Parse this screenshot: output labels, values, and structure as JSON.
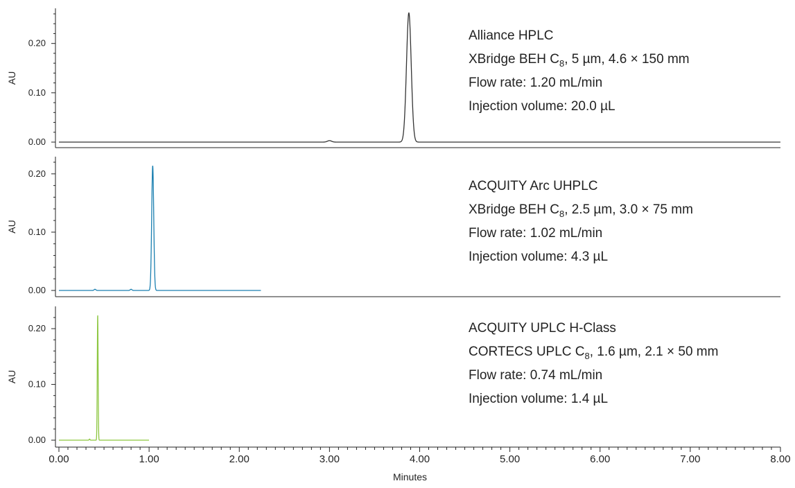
{
  "chart_data": {
    "type": "line",
    "x_label": "Minutes",
    "x_ticks": [
      "0.00",
      "1.00",
      "2.00",
      "3.00",
      "4.00",
      "5.00",
      "6.00",
      "7.00",
      "8.00"
    ],
    "xlim": [
      0,
      8
    ],
    "panels": [
      {
        "ylabel": "AU",
        "ylim": [
          0,
          0.26
        ],
        "y_ticks": [
          "0.00",
          "0.10",
          "0.20"
        ],
        "color": "#333333",
        "x_end": 8.0,
        "peaks": [
          {
            "rt": 3.0,
            "height": 0.003,
            "width": 0.025
          },
          {
            "rt": 3.88,
            "height": 0.262,
            "width": 0.028
          }
        ],
        "annotations": [
          {
            "text": "Alliance HPLC"
          },
          {
            "text": "XBridge BEH C",
            "sub": "8",
            "rest": ", 5 µm, 4.6 × 150 mm"
          },
          {
            "text": "Flow rate: 1.20 mL/min"
          },
          {
            "text": "Injection volume: 20.0 µL"
          }
        ]
      },
      {
        "ylabel": "AU",
        "ylim": [
          0,
          0.22
        ],
        "y_ticks": [
          "0.00",
          "0.10",
          "0.20"
        ],
        "color": "#1a7fb0",
        "x_end": 2.24,
        "peaks": [
          {
            "rt": 0.4,
            "height": 0.002,
            "width": 0.01
          },
          {
            "rt": 0.8,
            "height": 0.002,
            "width": 0.01
          },
          {
            "rt": 1.04,
            "height": 0.214,
            "width": 0.012
          }
        ],
        "annotations": [
          {
            "text": "ACQUITY Arc UHPLC"
          },
          {
            "text": "XBridge BEH C",
            "sub": "8",
            "rest": ", 2.5 µm, 3.0 × 75 mm"
          },
          {
            "text": "Flow rate: 1.02 mL/min"
          },
          {
            "text": "Injection volume: 4.3 µL"
          }
        ]
      },
      {
        "ylabel": "AU",
        "ylim": [
          0,
          0.23
        ],
        "y_ticks": [
          "0.00",
          "0.10",
          "0.20"
        ],
        "color": "#8cc63f",
        "x_end": 1.0,
        "peaks": [
          {
            "rt": 0.34,
            "height": 0.002,
            "width": 0.005
          },
          {
            "rt": 0.43,
            "height": 0.225,
            "width": 0.005
          }
        ],
        "annotations": [
          {
            "text": "ACQUITY UPLC H-Class"
          },
          {
            "text": "CORTECS UPLC C",
            "sub": "8",
            "rest": ", 1.6 µm, 2.1 × 50 mm"
          },
          {
            "text": "Flow rate:  0.74 mL/min"
          },
          {
            "text": "Injection volume: 1.4 µL"
          }
        ]
      }
    ]
  }
}
